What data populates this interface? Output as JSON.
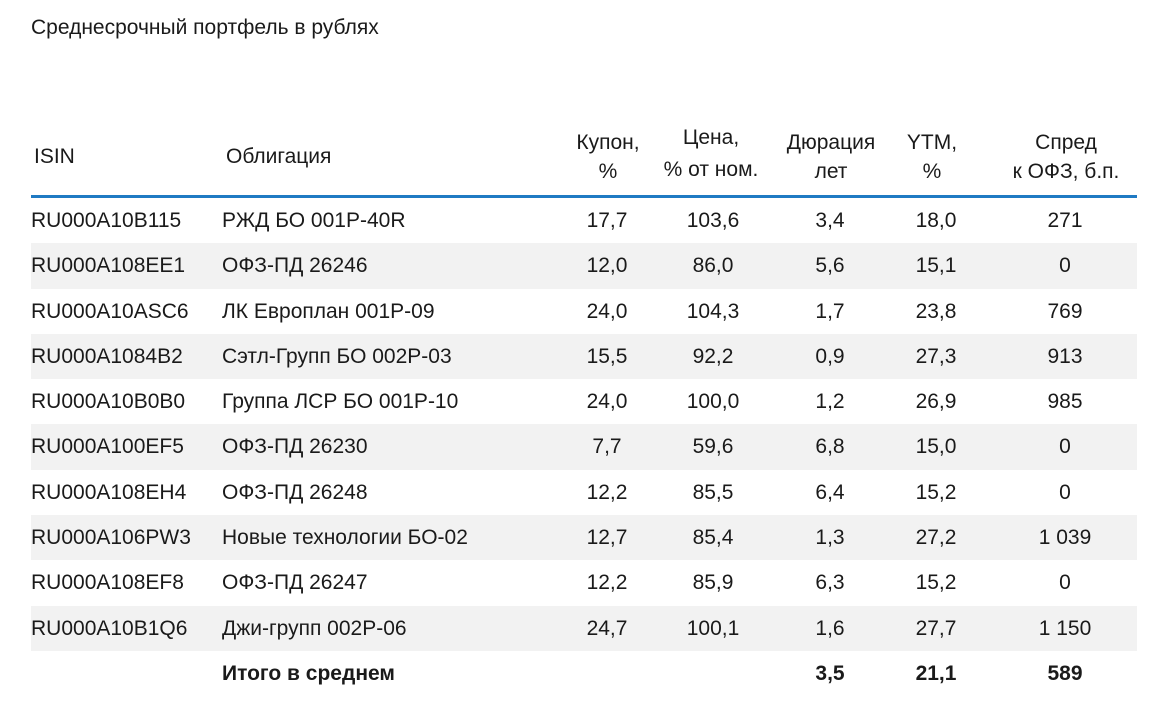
{
  "title": "Среднесрочный портфель в рублях",
  "columns": {
    "isin": "ISIN",
    "bond": "Облигация",
    "coupon": [
      "Купон,",
      "%"
    ],
    "price": [
      "Цена,",
      "% от ном."
    ],
    "duration": [
      "Дюрация",
      "лет"
    ],
    "ytm": [
      "YTM,",
      "%"
    ],
    "spread": [
      "Спред",
      "к ОФЗ, б.п."
    ]
  },
  "rows": [
    {
      "isin": "RU000A10B115",
      "bond": "РЖД БО 001P-40R",
      "coupon": "17,7",
      "price": "103,6",
      "duration": "3,4",
      "ytm": "18,0",
      "spread": "271"
    },
    {
      "isin": "RU000A108EE1",
      "bond": "ОФЗ-ПД 26246",
      "coupon": "12,0",
      "price": "86,0",
      "duration": "5,6",
      "ytm": "15,1",
      "spread": "0"
    },
    {
      "isin": "RU000A10ASC6",
      "bond": "ЛК Европлан 001Р-09",
      "coupon": "24,0",
      "price": "104,3",
      "duration": "1,7",
      "ytm": "23,8",
      "spread": "769"
    },
    {
      "isin": "RU000A1084B2",
      "bond": "Сэтл-Групп БО 002Р-03",
      "coupon": "15,5",
      "price": "92,2",
      "duration": "0,9",
      "ytm": "27,3",
      "spread": "913"
    },
    {
      "isin": "RU000A10B0B0",
      "bond": "Группа ЛСР БО 001Р-10",
      "coupon": "24,0",
      "price": "100,0",
      "duration": "1,2",
      "ytm": "26,9",
      "spread": "985"
    },
    {
      "isin": "RU000A100EF5",
      "bond": "ОФЗ-ПД 26230",
      "coupon": "7,7",
      "price": "59,6",
      "duration": "6,8",
      "ytm": "15,0",
      "spread": "0"
    },
    {
      "isin": "RU000A108EH4",
      "bond": "ОФЗ-ПД 26248",
      "coupon": "12,2",
      "price": "85,5",
      "duration": "6,4",
      "ytm": "15,2",
      "spread": "0"
    },
    {
      "isin": "RU000A106PW3",
      "bond": "Новые технологии БО-02",
      "coupon": "12,7",
      "price": "85,4",
      "duration": "1,3",
      "ytm": "27,2",
      "spread": "1 039"
    },
    {
      "isin": "RU000A108EF8",
      "bond": "ОФЗ-ПД 26247",
      "coupon": "12,2",
      "price": "85,9",
      "duration": "6,3",
      "ytm": "15,2",
      "spread": "0"
    },
    {
      "isin": "RU000A10B1Q6",
      "bond": "Джи-групп 002Р-06",
      "coupon": "24,7",
      "price": "100,1",
      "duration": "1,6",
      "ytm": "27,7",
      "spread": "1 150"
    }
  ],
  "total": {
    "label": "Итого в среднем",
    "duration": "3,5",
    "ytm": "21,1",
    "spread": "589"
  },
  "colors": {
    "header_rule": "#1f7ac3",
    "stripe": "#f2f2f2"
  }
}
